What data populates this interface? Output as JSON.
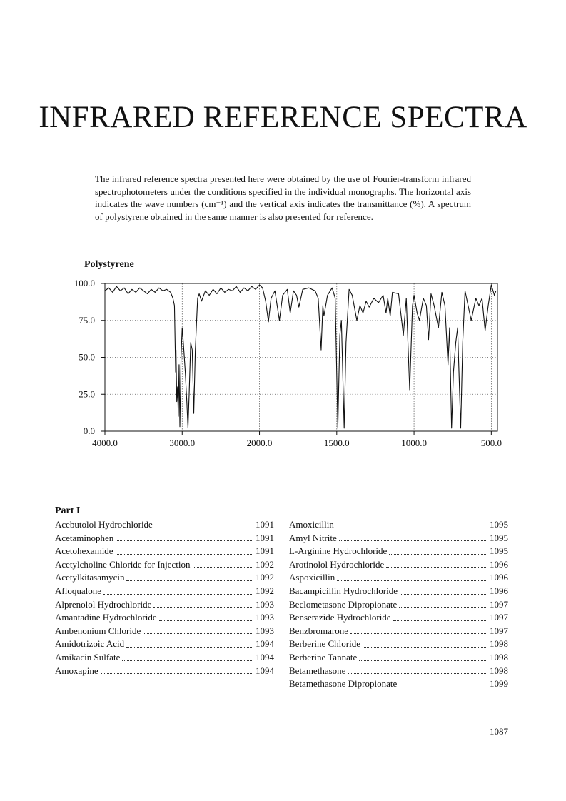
{
  "header": {
    "title": "INFRARED REFERENCE SPECTRA"
  },
  "intro": "The infrared reference spectra presented here were obtained by the use of Fourier-transform infrared spectrophotometers under the conditions specified in the individual monographs. The horizontal axis indicates the wave numbers (cm⁻¹) and the vertical axis indicates the transmittance (%). A spectrum of polystyrene obtained in the same manner is also presented for reference.",
  "chart_data": {
    "type": "line",
    "title": "Polystyrene",
    "color": "#111111",
    "grid": true,
    "x_scale_break": 2000,
    "xlim": [
      4000,
      460
    ],
    "xticks": [
      {
        "value": 4000,
        "label": "4000.0"
      },
      {
        "value": 3000,
        "label": "3000.0"
      },
      {
        "value": 2000,
        "label": "2000.0"
      },
      {
        "value": 1500,
        "label": "1500.0"
      },
      {
        "value": 1000,
        "label": "1000.0"
      },
      {
        "value": 500,
        "label": "500.0"
      }
    ],
    "ylim": [
      0,
      100
    ],
    "yticks": [
      {
        "value": 0,
        "label": "0.0"
      },
      {
        "value": 25,
        "label": "25.0"
      },
      {
        "value": 50,
        "label": "50.0"
      },
      {
        "value": 75,
        "label": "75.0"
      },
      {
        "value": 100,
        "label": "100.0"
      }
    ],
    "x": [
      4000,
      3950,
      3900,
      3850,
      3800,
      3750,
      3700,
      3650,
      3600,
      3550,
      3500,
      3450,
      3400,
      3350,
      3300,
      3250,
      3200,
      3150,
      3120,
      3100,
      3085,
      3080,
      3070,
      3060,
      3050,
      3040,
      3030,
      3015,
      3000,
      2985,
      2960,
      2940,
      2925,
      2910,
      2890,
      2870,
      2850,
      2830,
      2800,
      2780,
      2750,
      2700,
      2650,
      2600,
      2550,
      2500,
      2450,
      2400,
      2350,
      2300,
      2250,
      2200,
      2150,
      2100,
      2050,
      2000,
      1980,
      1960,
      1942,
      1925,
      1900,
      1871,
      1850,
      1820,
      1801,
      1780,
      1760,
      1745,
      1720,
      1680,
      1640,
      1620,
      1601,
      1590,
      1583,
      1560,
      1530,
      1510,
      1493,
      1480,
      1470,
      1452,
      1440,
      1420,
      1400,
      1370,
      1350,
      1330,
      1310,
      1290,
      1260,
      1230,
      1200,
      1181,
      1170,
      1154,
      1140,
      1100,
      1069,
      1050,
      1028,
      1010,
      1000,
      980,
      965,
      940,
      920,
      906,
      890,
      870,
      842,
      820,
      800,
      780,
      770,
      757,
      745,
      730,
      718,
      698,
      685,
      670,
      650,
      630,
      600,
      580,
      560,
      540,
      520,
      500,
      480,
      470
    ],
    "values": [
      95,
      97,
      94,
      98,
      95,
      97,
      93,
      96,
      94,
      97,
      95,
      93,
      96,
      94,
      97,
      95,
      96,
      94,
      90,
      85,
      40,
      55,
      20,
      30,
      10,
      45,
      3,
      50,
      70,
      60,
      40,
      20,
      2,
      25,
      60,
      55,
      12,
      55,
      90,
      93,
      88,
      95,
      92,
      96,
      93,
      97,
      94,
      96,
      95,
      98,
      94,
      97,
      95,
      98,
      96,
      99,
      97,
      88,
      74,
      90,
      95,
      75,
      92,
      96,
      80,
      95,
      92,
      84,
      96,
      97,
      95,
      90,
      55,
      85,
      78,
      92,
      97,
      90,
      2,
      65,
      75,
      2,
      60,
      96,
      92,
      75,
      85,
      80,
      88,
      84,
      90,
      87,
      92,
      80,
      90,
      78,
      94,
      93,
      65,
      90,
      28,
      85,
      92,
      80,
      75,
      90,
      85,
      62,
      93,
      85,
      70,
      94,
      85,
      45,
      70,
      2,
      40,
      60,
      70,
      2,
      60,
      95,
      85,
      75,
      90,
      85,
      90,
      68,
      85,
      99,
      92,
      95
    ]
  },
  "index": {
    "heading": "Part I",
    "left": [
      {
        "name": "Acebutolol Hydrochloride",
        "page": 1091
      },
      {
        "name": "Acetaminophen",
        "page": 1091
      },
      {
        "name": "Acetohexamide",
        "page": 1091
      },
      {
        "name": "Acetylcholine Chloride for Injection",
        "page": 1092
      },
      {
        "name": "Acetylkitasamycin",
        "page": 1092
      },
      {
        "name": "Afloqualone",
        "page": 1092
      },
      {
        "name": "Alprenolol Hydrochloride",
        "page": 1093
      },
      {
        "name": "Amantadine Hydrochloride",
        "page": 1093
      },
      {
        "name": "Ambenonium Chloride",
        "page": 1093
      },
      {
        "name": "Amidotrizoic Acid",
        "page": 1094
      },
      {
        "name": "Amikacin Sulfate",
        "page": 1094
      },
      {
        "name": "Amoxapine",
        "page": 1094
      }
    ],
    "right": [
      {
        "name": "Amoxicillin",
        "page": 1095
      },
      {
        "name": "Amyl Nitrite",
        "page": 1095
      },
      {
        "name": "L-Arginine Hydrochloride",
        "page": 1095
      },
      {
        "name": "Arotinolol Hydrochloride",
        "page": 1096
      },
      {
        "name": "Aspoxicillin",
        "page": 1096
      },
      {
        "name": "Bacampicillin Hydrochloride",
        "page": 1096
      },
      {
        "name": "Beclometasone Dipropionate",
        "page": 1097
      },
      {
        "name": "Benserazide Hydrochloride",
        "page": 1097
      },
      {
        "name": "Benzbromarone",
        "page": 1097
      },
      {
        "name": "Berberine Chloride",
        "page": 1098
      },
      {
        "name": "Berberine Tannate",
        "page": 1098
      },
      {
        "name": "Betamethasone",
        "page": 1098
      },
      {
        "name": "Betamethasone Dipropionate",
        "page": 1099
      }
    ]
  },
  "page_number": 1087
}
